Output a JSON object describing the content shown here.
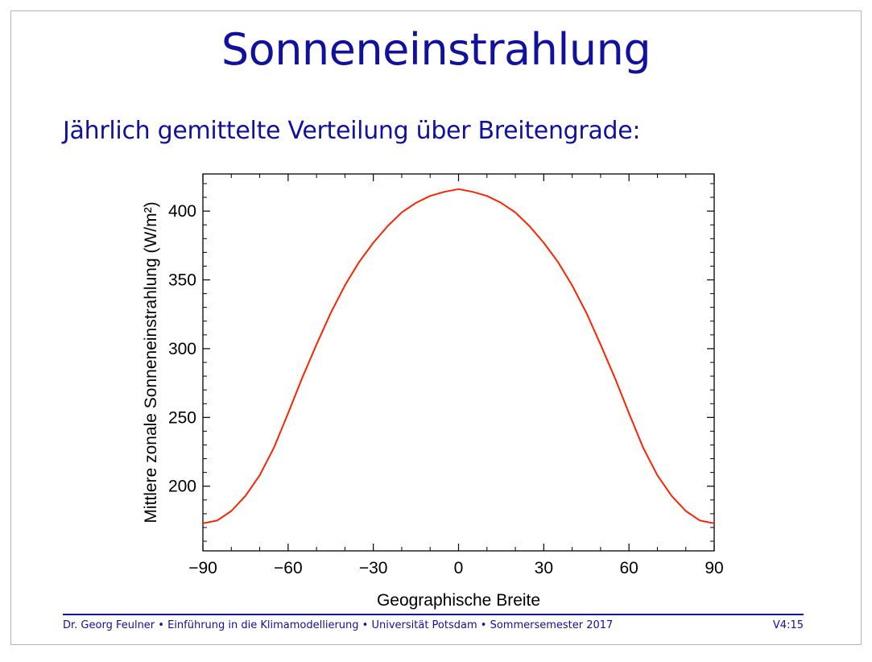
{
  "slide": {
    "title": "Sonneneinstrahlung",
    "subtitle": "Jährlich gemittelte Verteilung über Breitengrade:",
    "footer_left": "Dr. Georg Feulner • Einführung in die Klimamodellierung • Universität Potsdam • Sommersemester 2017",
    "footer_right": "V4:15"
  },
  "colors": {
    "accent": "#11119e",
    "line": "#ff2200"
  },
  "chart_data": {
    "type": "line",
    "xlabel": "Geographische Breite",
    "ylabel": "Mittlere zonale Sonneneinstrahlung  (W/m²)",
    "xlim": [
      -90,
      90
    ],
    "ylim": [
      153,
      427
    ],
    "xticks": [
      -90,
      -60,
      -30,
      0,
      30,
      60,
      90
    ],
    "xtick_labels": [
      "−90",
      "−60",
      "−30",
      "0",
      "30",
      "60",
      "90"
    ],
    "yticks": [
      200,
      250,
      300,
      350,
      400
    ],
    "grid": false,
    "series": [
      {
        "x": [
          -90,
          -85,
          -80,
          -75,
          -70,
          -65,
          -60,
          -55,
          -50,
          -45,
          -40,
          -35,
          -30,
          -25,
          -20,
          -15,
          -10,
          -5,
          0,
          5,
          10,
          15,
          20,
          25,
          30,
          35,
          40,
          45,
          50,
          55,
          60,
          65,
          70,
          75,
          80,
          85,
          90
        ],
        "y": [
          173,
          175,
          182,
          193,
          208,
          228,
          253,
          279,
          303,
          326,
          346,
          363,
          377,
          389,
          399,
          406,
          411,
          414,
          416,
          414,
          411,
          406,
          399,
          389,
          377,
          363,
          346,
          326,
          303,
          279,
          253,
          228,
          208,
          193,
          182,
          175,
          173
        ]
      }
    ]
  }
}
